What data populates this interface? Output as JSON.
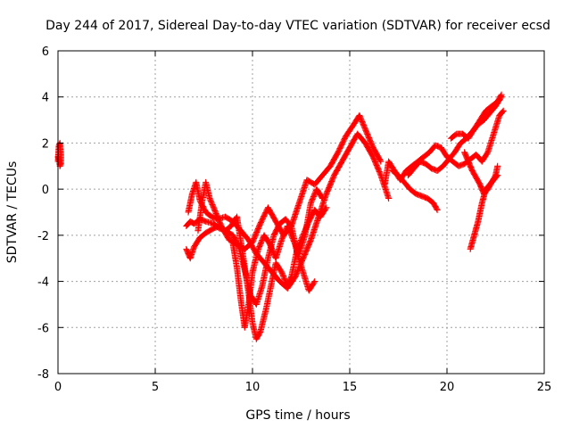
{
  "chart_data": {
    "type": "scatter",
    "title": "Day 244 of 2017, Sidereal Day-to-day VTEC variation (SDTVAR) for receiver ecsd",
    "xlabel": "GPS time / hours",
    "ylabel": "SDTVAR / TECUs",
    "xlim": [
      0,
      25
    ],
    "ylim": [
      -8,
      6
    ],
    "xticks": [
      0,
      5,
      10,
      15,
      20,
      25
    ],
    "yticks": [
      -8,
      -6,
      -4,
      -2,
      0,
      2,
      4,
      6
    ],
    "grid": true,
    "legend": "none",
    "marker": "+",
    "color": "#ff0000",
    "series": [
      {
        "x": [
          0.0,
          0.05,
          0.1,
          0.15,
          0.15,
          0.1,
          0.05,
          0.0
        ],
        "y": [
          1.2,
          1.9,
          2.0,
          1.5,
          1.1,
          1.0,
          1.3,
          1.4
        ]
      },
      {
        "x": [
          6.6,
          6.8,
          7.0,
          7.3,
          7.6,
          8.0,
          8.3,
          8.6,
          8.9,
          9.2,
          9.5,
          9.8,
          10.0,
          10.2,
          10.4,
          10.7,
          11.0,
          11.2,
          11.5,
          11.8,
          12.0,
          12.3,
          12.6,
          12.9,
          13.2,
          13.5,
          13.8
        ],
        "y": [
          -1.6,
          -1.4,
          -1.5,
          -1.3,
          -1.4,
          -1.5,
          -1.7,
          -1.8,
          -1.6,
          -1.2,
          -2.8,
          -4.5,
          -5.8,
          -6.5,
          -6.2,
          -5.2,
          -4.0,
          -3.2,
          -3.6,
          -4.2,
          -3.8,
          -2.6,
          -2.0,
          -1.4,
          -0.9,
          -1.2,
          -0.8
        ]
      },
      {
        "x": [
          6.6,
          6.8,
          7.0,
          7.3,
          7.6,
          8.0,
          8.3,
          8.6,
          9.0,
          9.3,
          9.6,
          9.9,
          10.2,
          10.5,
          10.8,
          11.1,
          11.4,
          11.7,
          12.0,
          12.3,
          12.6,
          12.9,
          13.2
        ],
        "y": [
          -2.6,
          -3.0,
          -2.5,
          -2.1,
          -1.9,
          -1.7,
          -1.6,
          -1.8,
          -2.0,
          -2.5,
          -3.5,
          -4.6,
          -5.0,
          -4.2,
          -3.0,
          -2.0,
          -1.5,
          -1.3,
          -1.6,
          -2.8,
          -3.6,
          -4.4,
          -4.0
        ]
      },
      {
        "x": [
          6.7,
          6.9,
          7.1,
          7.3,
          7.6,
          7.9,
          8.2,
          8.6,
          9.0,
          9.4,
          9.8,
          10.2,
          10.6,
          11.0,
          11.4,
          11.8,
          12.2,
          12.6,
          13.0,
          13.4,
          13.8,
          14.2,
          14.6,
          15.0,
          15.4,
          15.8,
          16.2,
          16.6,
          17.0
        ],
        "y": [
          -1.0,
          -0.2,
          0.3,
          -0.5,
          -1.0,
          -1.2,
          -1.3,
          -1.2,
          -1.4,
          -1.8,
          -2.2,
          -2.8,
          -3.2,
          -3.6,
          -4.0,
          -4.3,
          -3.8,
          -3.0,
          -2.2,
          -1.2,
          -0.2,
          0.6,
          1.2,
          1.8,
          2.4,
          2.0,
          1.4,
          0.6,
          -0.4
        ]
      },
      {
        "x": [
          7.2,
          7.4,
          7.6,
          7.8,
          8.1,
          8.4,
          8.8,
          9.2,
          9.6,
          10.0,
          10.4,
          10.8,
          11.2,
          11.6,
          12.0,
          12.4,
          12.8,
          13.2,
          13.6,
          14.0,
          14.4,
          14.8,
          15.2,
          15.5,
          15.8,
          16.2,
          16.6
        ],
        "y": [
          -1.8,
          -0.6,
          0.3,
          -0.4,
          -1.0,
          -1.6,
          -2.2,
          -2.4,
          -2.6,
          -2.3,
          -1.5,
          -0.8,
          -1.4,
          -2.0,
          -1.6,
          -0.6,
          0.4,
          0.2,
          0.6,
          1.0,
          1.6,
          2.3,
          2.8,
          3.2,
          2.6,
          1.8,
          1.2
        ]
      },
      {
        "x": [
          9.0,
          9.2,
          9.4,
          9.6,
          9.8,
          10.0,
          10.3,
          10.6,
          10.9,
          11.2,
          11.5,
          11.8,
          12.1,
          12.4,
          12.7,
          13.0,
          13.3,
          13.6
        ],
        "y": [
          -2.4,
          -3.4,
          -4.8,
          -6.0,
          -5.0,
          -3.6,
          -2.6,
          -2.0,
          -2.4,
          -3.0,
          -2.2,
          -1.6,
          -2.2,
          -2.8,
          -2.0,
          -0.6,
          0.0,
          -0.4
        ]
      },
      {
        "x": [
          16.8,
          17.0,
          17.3,
          17.6,
          17.9,
          18.2,
          18.5,
          18.8,
          19.1,
          19.4,
          19.7,
          20.0,
          20.3,
          20.6,
          20.9,
          21.2,
          21.5,
          21.8,
          22.1,
          22.4,
          22.7,
          22.9
        ],
        "y": [
          0.2,
          1.2,
          0.8,
          0.4,
          0.8,
          1.0,
          1.2,
          1.4,
          1.6,
          1.9,
          1.8,
          1.4,
          1.2,
          1.0,
          1.1,
          1.3,
          1.5,
          1.2,
          1.6,
          2.4,
          3.2,
          3.4
        ]
      },
      {
        "x": [
          17.2,
          17.5,
          17.8,
          18.1,
          18.4,
          18.7,
          19.0,
          19.3,
          19.5
        ],
        "y": [
          0.8,
          0.6,
          0.3,
          0.0,
          -0.2,
          -0.3,
          -0.4,
          -0.6,
          -0.9
        ]
      },
      {
        "x": [
          18.0,
          18.3,
          18.6,
          18.9,
          19.2,
          19.5,
          19.8,
          20.1,
          20.4,
          20.7,
          21.0,
          21.3,
          21.6,
          21.9,
          22.2,
          22.5,
          22.8
        ],
        "y": [
          0.6,
          0.9,
          1.2,
          1.1,
          0.9,
          0.8,
          1.0,
          1.3,
          1.6,
          2.0,
          2.2,
          2.5,
          2.8,
          3.0,
          3.3,
          3.6,
          4.0
        ]
      },
      {
        "x": [
          20.2,
          20.5,
          20.8,
          21.1,
          21.4,
          21.7,
          22.0,
          22.3,
          22.6,
          22.8
        ],
        "y": [
          2.2,
          2.4,
          2.4,
          2.2,
          2.6,
          3.0,
          3.4,
          3.6,
          3.8,
          4.1
        ]
      },
      {
        "x": [
          20.9,
          21.1,
          21.3,
          21.5,
          21.7,
          21.9,
          22.1,
          22.3,
          22.5,
          22.6
        ],
        "y": [
          1.6,
          1.2,
          0.8,
          0.5,
          0.2,
          -0.2,
          0.0,
          0.3,
          0.6,
          1.0
        ]
      },
      {
        "x": [
          21.2,
          21.4,
          21.6,
          21.8,
          22.0,
          22.2,
          22.4,
          22.6
        ],
        "y": [
          -2.6,
          -2.0,
          -1.4,
          -0.6,
          0.0,
          0.2,
          0.4,
          0.6
        ]
      }
    ]
  }
}
